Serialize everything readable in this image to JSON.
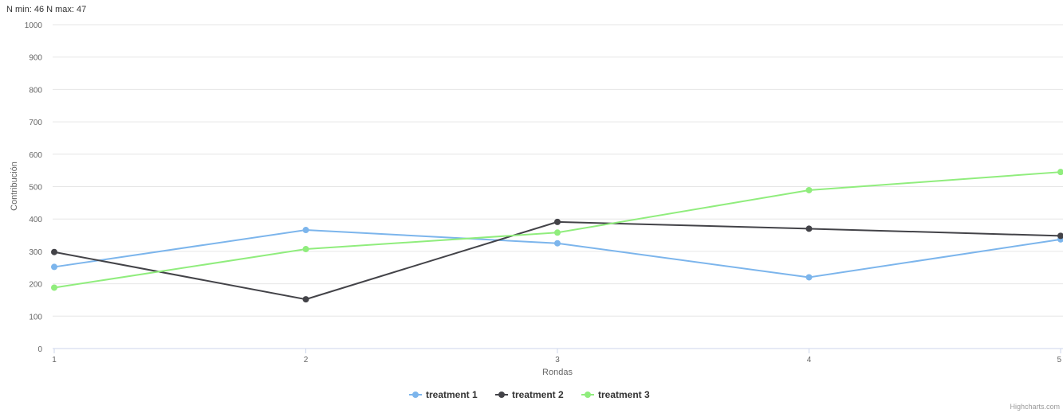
{
  "chart_data": {
    "type": "line",
    "subtitle": "N min: 46 N max: 47",
    "xlabel": "Rondas",
    "ylabel": "Contribución",
    "x": [
      1,
      2,
      3,
      4,
      5
    ],
    "xlim": [
      1,
      5
    ],
    "ylim": [
      0,
      1000
    ],
    "y_ticks": [
      0,
      100,
      200,
      300,
      400,
      500,
      600,
      700,
      800,
      900,
      1000
    ],
    "grid": true,
    "legend_position": "bottom-center",
    "series": [
      {
        "name": "treatment 1",
        "color": "#7cb5ec",
        "values": [
          252,
          366,
          325,
          220,
          337
        ]
      },
      {
        "name": "treatment 2",
        "color": "#434348",
        "values": [
          298,
          152,
          391,
          370,
          348
        ]
      },
      {
        "name": "treatment 3",
        "color": "#90ed7d",
        "values": [
          188,
          307,
          358,
          489,
          545
        ]
      }
    ],
    "credits": "Highcharts.com"
  }
}
